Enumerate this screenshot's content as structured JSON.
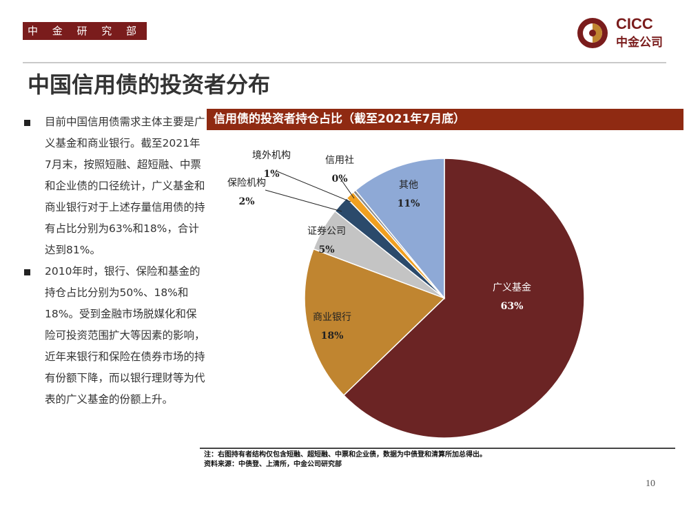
{
  "header": {
    "department": "中 金 研 究 部",
    "logo_en": "CICC",
    "logo_cn": "中金公司"
  },
  "title": "中国信用债的投资者分布",
  "bullets": [
    "目前中国信用债需求主体主要是广义基金和商业银行。截至2021年7月末，按照短融、超短融、中票和企业债的口径统计，广义基金和商业银行对于上述存量信用债的持有占比分别为63%和18%，合计达到81%。",
    "2010年时，银行、保险和基金的持仓占比分别为50%、18%和18%。受到金融市场脱媒化和保险可投资范围扩大等因素的影响，近年来银行和保险在债券市场的持有份额下降，而以银行理财等为代表的广义基金的份额上升。"
  ],
  "chart_header": "信用债的投资者持仓占比（截至2021年7月底）",
  "chart_data": {
    "type": "pie",
    "title": "信用债的投资者持仓占比（截至2021年7月底）",
    "slices": [
      {
        "label": "广义基金",
        "value": 63,
        "pct": "63%",
        "color": "#6b2424"
      },
      {
        "label": "商业银行",
        "value": 18,
        "pct": "18%",
        "color": "#c08530"
      },
      {
        "label": "证券公司",
        "value": 5,
        "pct": "5%",
        "color": "#c4c4c4"
      },
      {
        "label": "保险机构",
        "value": 2,
        "pct": "2%",
        "color": "#2b4a6b"
      },
      {
        "label": "境外机构",
        "value": 1,
        "pct": "1%",
        "color": "#f0a020"
      },
      {
        "label": "信用社",
        "value": 0,
        "pct": "0%",
        "color": "#8a8a8a"
      },
      {
        "label": "其他",
        "value": 11,
        "pct": "11%",
        "color": "#8ea9d6"
      }
    ]
  },
  "notes": {
    "note": "注：右图持有者结构仅包含短融、超短融、中票和企业债，数据为中债登和清算所加总得出。",
    "source": "资料来源：中债登、上清所，中金公司研究部"
  },
  "page_number": "10"
}
